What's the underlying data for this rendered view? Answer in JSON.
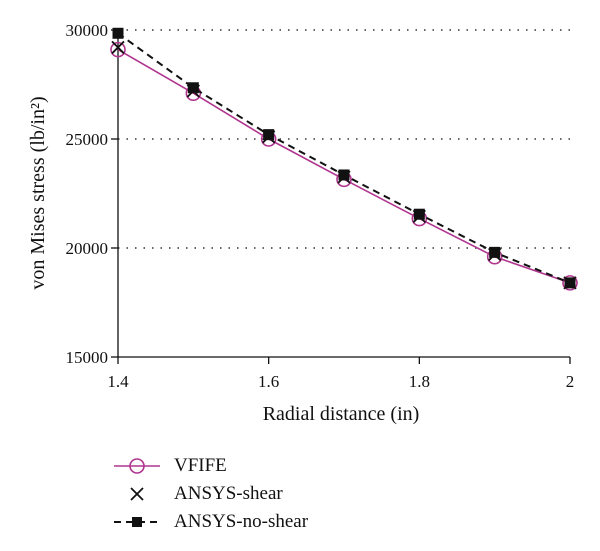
{
  "chart_data": {
    "type": "line",
    "xlabel": "Radial distance (in)",
    "ylabel": "von Mises stress (lb/in²)",
    "xlim": [
      1.4,
      2.0
    ],
    "ylim": [
      15000,
      30000
    ],
    "x_ticks": [
      "1.4",
      "1.6",
      "1.8",
      "2"
    ],
    "y_ticks": [
      "15000",
      "20000",
      "25000",
      "30000"
    ],
    "grid": "horizontal dotted",
    "legend_position": "bottom",
    "x": [
      1.4,
      1.5,
      1.6,
      1.7,
      1.8,
      1.9,
      2.0
    ],
    "series": [
      {
        "name": "VFIFE",
        "color": "#b0358f",
        "marker": "circle",
        "line": "solid",
        "values": [
          29100,
          27100,
          25000,
          23150,
          21350,
          19600,
          18400
        ]
      },
      {
        "name": "ANSYS-shear",
        "color": "#111111",
        "marker": "x",
        "line": "none",
        "values": [
          29200,
          27200,
          25100,
          23250,
          21450,
          19700,
          18400
        ]
      },
      {
        "name": "ANSYS-no-shear",
        "color": "#111111",
        "marker": "square",
        "line": "dashed",
        "values": [
          29850,
          27350,
          25200,
          23350,
          21550,
          19800,
          18400
        ]
      }
    ]
  }
}
